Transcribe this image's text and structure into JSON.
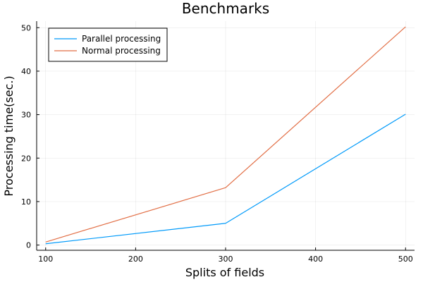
{
  "chart_data": {
    "type": "line",
    "title": "Benchmarks",
    "xlabel": "Splits of fields",
    "ylabel": "Processing time(sec.)",
    "x": [
      100,
      300,
      500
    ],
    "xlim": [
      90,
      510
    ],
    "ylim": [
      -1.2,
      51.5
    ],
    "xticks": [
      100,
      200,
      300,
      400,
      500
    ],
    "yticks": [
      0,
      10,
      20,
      30,
      40,
      50
    ],
    "grid": true,
    "legend_position": "top-left",
    "series": [
      {
        "name": "Parallel processing",
        "values": [
          0.3,
          5.0,
          30.1
        ],
        "color": "#009AFA"
      },
      {
        "name": "Normal processing",
        "values": [
          0.7,
          13.2,
          50.2
        ],
        "color": "#E26F46"
      }
    ]
  }
}
